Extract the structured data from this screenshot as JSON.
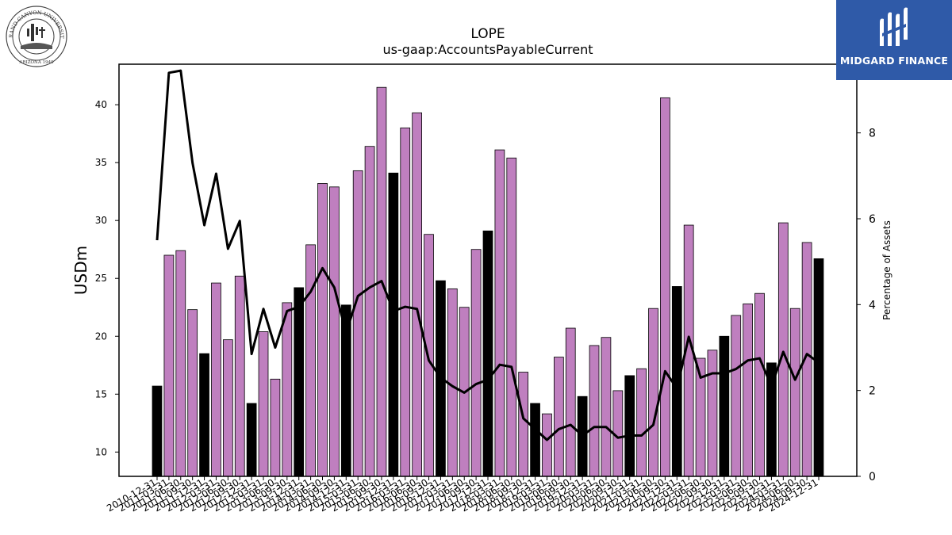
{
  "header": {
    "left_logo": {
      "text": "GRAND CANYON UNIVERSITY · ARIZONA 1949"
    },
    "right_logo": {
      "brand": "MIDGARD FINANCE"
    }
  },
  "colors": {
    "bar_purple": "#bf7fbf",
    "bar_black": "#000000",
    "line": "#000000",
    "logo_blue": "#2f5aa8"
  },
  "chart_data": {
    "type": "bar",
    "title": "LOPE",
    "subtitle": "us-gaap:AccountsPayableCurrent",
    "ylabel": "USDm",
    "y2label": "Percentage of Assets",
    "ylim": [
      7.9,
      43.5
    ],
    "y2lim": [
      0,
      9.6
    ],
    "yticks": [
      10,
      15,
      20,
      25,
      30,
      35,
      40
    ],
    "y2ticks": [
      0,
      2,
      4,
      6,
      8
    ],
    "categories": [
      "2010-12-31",
      "2011-03-31",
      "2011-06-30",
      "2011-09-30",
      "2011-12-31",
      "2012-03-31",
      "2012-06-30",
      "2012-09-30",
      "2012-12-31",
      "2013-03-31",
      "2013-06-30",
      "2013-09-30",
      "2013-12-31",
      "2014-03-31",
      "2014-06-30",
      "2014-09-30",
      "2014-12-31",
      "2015-03-31",
      "2015-06-30",
      "2015-09-30",
      "2015-12-31",
      "2016-03-31",
      "2016-06-30",
      "2016-09-30",
      "2016-12-31",
      "2017-03-31",
      "2017-06-30",
      "2017-09-30",
      "2017-12-31",
      "2018-03-31",
      "2018-06-30",
      "2018-09-30",
      "2018-12-31",
      "2019-03-31",
      "2019-06-30",
      "2019-09-30",
      "2019-12-31",
      "2020-03-31",
      "2020-06-30",
      "2020-09-30",
      "2020-12-31",
      "2021-03-31",
      "2021-06-30",
      "2021-09-30",
      "2021-12-31",
      "2022-03-31",
      "2022-06-30",
      "2022-09-30",
      "2022-12-31",
      "2023-03-31",
      "2023-06-30",
      "2023-09-30",
      "2023-12-31",
      "2024-03-31",
      "2024-06-30",
      "2024-09-30",
      "2024-12-31"
    ],
    "series": [
      {
        "type": "bar",
        "values": [
          15.7,
          27.0,
          27.4,
          22.3,
          18.5,
          24.6,
          19.7,
          25.2,
          14.2,
          20.4,
          16.3,
          22.9,
          24.2,
          27.9,
          33.2,
          32.9,
          22.7,
          34.3,
          36.4,
          41.5,
          34.1,
          38.0,
          39.3,
          28.8,
          24.8,
          24.1,
          22.5,
          27.5,
          29.1,
          36.1,
          35.4,
          16.9,
          14.2,
          13.3,
          18.2,
          20.7,
          14.8,
          19.2,
          19.9,
          15.3,
          16.6,
          17.2,
          22.4,
          40.6,
          24.3,
          29.6,
          18.1,
          18.8,
          20.0,
          21.8,
          22.8,
          23.7,
          17.7,
          29.8,
          22.4,
          28.1,
          26.7
        ],
        "highlight_black": [
          true,
          false,
          false,
          false,
          true,
          false,
          false,
          false,
          true,
          false,
          false,
          false,
          true,
          false,
          false,
          false,
          true,
          false,
          false,
          false,
          true,
          false,
          false,
          false,
          true,
          false,
          false,
          false,
          true,
          false,
          false,
          false,
          true,
          false,
          false,
          false,
          true,
          false,
          false,
          false,
          true,
          false,
          false,
          false,
          true,
          false,
          false,
          false,
          true,
          false,
          false,
          false,
          true,
          false,
          false,
          false,
          true
        ]
      },
      {
        "type": "line",
        "axis": "secondary",
        "values": [
          5.5,
          9.4,
          9.45,
          7.3,
          5.85,
          7.05,
          5.3,
          5.95,
          2.85,
          3.9,
          3.0,
          3.85,
          3.95,
          4.3,
          4.85,
          4.4,
          3.35,
          4.2,
          4.4,
          4.55,
          3.85,
          3.95,
          3.9,
          2.7,
          2.3,
          2.1,
          1.95,
          2.15,
          2.25,
          2.6,
          2.55,
          1.35,
          1.1,
          0.85,
          1.1,
          1.2,
          0.95,
          1.15,
          1.15,
          0.9,
          0.95,
          0.95,
          1.2,
          2.45,
          2.05,
          3.25,
          2.3,
          2.4,
          2.4,
          2.5,
          2.7,
          2.75,
          2.1,
          2.9,
          2.25,
          2.85,
          2.65
        ]
      }
    ]
  }
}
